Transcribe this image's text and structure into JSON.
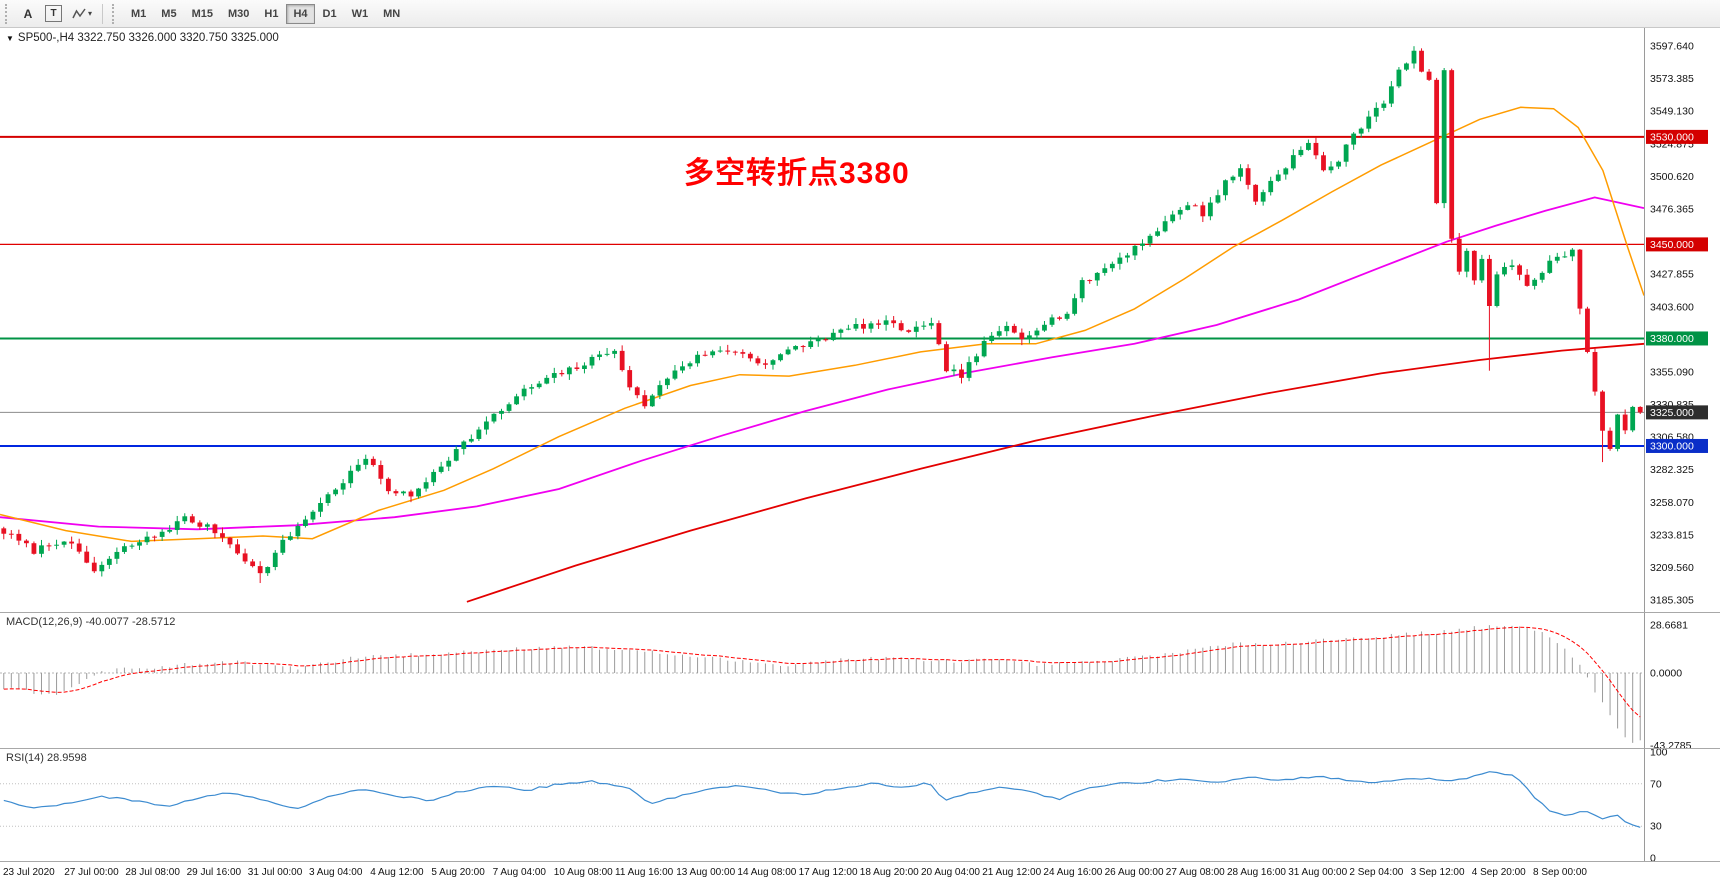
{
  "toolbar": {
    "tools": [
      "A",
      "T"
    ],
    "timeframes": [
      {
        "label": "M1",
        "active": false
      },
      {
        "label": "M5",
        "active": false
      },
      {
        "label": "M15",
        "active": false
      },
      {
        "label": "M30",
        "active": false
      },
      {
        "label": "H1",
        "active": false
      },
      {
        "label": "H4",
        "active": true
      },
      {
        "label": "D1",
        "active": false
      },
      {
        "label": "W1",
        "active": false
      },
      {
        "label": "MN",
        "active": false
      }
    ]
  },
  "chart": {
    "title": "SP500-,H4  3322.750 3326.000 3320.750 3325.000",
    "annotation": {
      "text": "多空转折点3380",
      "color": "#ff0000"
    },
    "axis_labels": [
      "3597.640",
      "3573.385",
      "3549.130",
      "3524.875",
      "3500.620",
      "3476.365",
      "3452.110",
      "3427.855",
      "3403.600",
      "3379.345",
      "3355.090",
      "3330.835",
      "3306.580",
      "3282.325",
      "3258.070",
      "3233.815",
      "3209.560",
      "3185.305"
    ],
    "levels": [
      {
        "price": 3530.0,
        "label": "3530.000",
        "color": "#d40000",
        "badge_color": "#d40000",
        "line_width": 2
      },
      {
        "price": 3450.0,
        "label": "3450.000",
        "color": "#e00000",
        "badge_color": "#d40000",
        "line_width": 1.2
      },
      {
        "price": 3380.0,
        "label": "3380.000",
        "color": "#009345",
        "badge_color": "#009345",
        "line_width": 2
      },
      {
        "price": 3300.0,
        "label": "3300.000",
        "color": "#0026e0",
        "badge_color": "#0a2ec8",
        "line_width": 2
      }
    ],
    "current_price": {
      "value": 3325.0,
      "label": "3325.000",
      "line_color": "#8c8c8c",
      "badge_color": "#2e2e2e"
    },
    "candles": {
      "count": 218,
      "last_close": 3325.0,
      "up_color": "#00a651",
      "down_color": "#e81123",
      "close_anchors": [
        [
          0,
          3236
        ],
        [
          4,
          3222
        ],
        [
          8,
          3231
        ],
        [
          12,
          3207
        ],
        [
          16,
          3224
        ],
        [
          20,
          3233
        ],
        [
          24,
          3246
        ],
        [
          28,
          3237
        ],
        [
          31,
          3222
        ],
        [
          34,
          3204
        ],
        [
          37,
          3228
        ],
        [
          41,
          3252
        ],
        [
          45,
          3274
        ],
        [
          48,
          3291
        ],
        [
          51,
          3268
        ],
        [
          54,
          3262
        ],
        [
          57,
          3281
        ],
        [
          61,
          3302
        ],
        [
          65,
          3322
        ],
        [
          69,
          3341
        ],
        [
          73,
          3352
        ],
        [
          77,
          3361
        ],
        [
          81,
          3373
        ],
        [
          83,
          3342
        ],
        [
          85,
          3331
        ],
        [
          89,
          3357
        ],
        [
          93,
          3369
        ],
        [
          97,
          3371
        ],
        [
          101,
          3361
        ],
        [
          105,
          3373
        ],
        [
          109,
          3381
        ],
        [
          113,
          3389
        ],
        [
          117,
          3391
        ],
        [
          120,
          3386
        ],
        [
          123,
          3389
        ],
        [
          125,
          3358
        ],
        [
          127,
          3352
        ],
        [
          130,
          3376
        ],
        [
          133,
          3389
        ],
        [
          135,
          3381
        ],
        [
          138,
          3392
        ],
        [
          141,
          3399
        ],
        [
          143,
          3421
        ],
        [
          147,
          3436
        ],
        [
          151,
          3452
        ],
        [
          154,
          3466
        ],
        [
          157,
          3481
        ],
        [
          159,
          3473
        ],
        [
          162,
          3496
        ],
        [
          164,
          3506
        ],
        [
          166,
          3483
        ],
        [
          169,
          3503
        ],
        [
          171,
          3515
        ],
        [
          173,
          3525
        ],
        [
          175,
          3505
        ],
        [
          177,
          3513
        ],
        [
          179,
          3531
        ],
        [
          181,
          3546
        ],
        [
          183,
          3557
        ],
        [
          185,
          3578
        ],
        [
          187,
          3592
        ],
        [
          189,
          3570
        ],
        [
          190,
          3482
        ],
        [
          191,
          3580
        ],
        [
          192,
          3452
        ],
        [
          193,
          3431
        ],
        [
          194,
          3447
        ],
        [
          195,
          3421
        ],
        [
          196,
          3441
        ],
        [
          197,
          3405
        ],
        [
          198,
          3430
        ],
        [
          200,
          3436
        ],
        [
          202,
          3417
        ],
        [
          204,
          3431
        ],
        [
          206,
          3441
        ],
        [
          208,
          3446
        ],
        [
          209,
          3401
        ],
        [
          210,
          3371
        ],
        [
          211,
          3341
        ],
        [
          212,
          3311
        ],
        [
          213,
          3296
        ],
        [
          214,
          3321
        ],
        [
          215,
          3311
        ],
        [
          216,
          3331
        ],
        [
          217,
          3325
        ]
      ],
      "overrides": {
        "high": {
          "187": 3597.5
        },
        "low": {
          "197": 3356,
          "212": 3288,
          "34": 3198
        }
      }
    },
    "ma": {
      "orange": {
        "color": "#ff9c00",
        "width": 1.5,
        "points": [
          [
            0,
            3249
          ],
          [
            0.04,
            3237
          ],
          [
            0.08,
            3229
          ],
          [
            0.12,
            3231
          ],
          [
            0.16,
            3233
          ],
          [
            0.19,
            3231
          ],
          [
            0.23,
            3252
          ],
          [
            0.27,
            3267
          ],
          [
            0.3,
            3283
          ],
          [
            0.34,
            3307
          ],
          [
            0.38,
            3328
          ],
          [
            0.42,
            3345
          ],
          [
            0.45,
            3353
          ],
          [
            0.48,
            3352
          ],
          [
            0.52,
            3360
          ],
          [
            0.56,
            3370
          ],
          [
            0.6,
            3376
          ],
          [
            0.63,
            3376
          ],
          [
            0.66,
            3386
          ],
          [
            0.69,
            3402
          ],
          [
            0.72,
            3424
          ],
          [
            0.75,
            3448
          ],
          [
            0.78,
            3468
          ],
          [
            0.81,
            3489
          ],
          [
            0.84,
            3509
          ],
          [
            0.87,
            3526
          ],
          [
            0.9,
            3543
          ],
          [
            0.925,
            3552
          ],
          [
            0.945,
            3551
          ],
          [
            0.96,
            3537
          ],
          [
            0.975,
            3505
          ],
          [
            0.99,
            3448
          ],
          [
            1,
            3412
          ]
        ]
      },
      "magenta": {
        "color": "#f000f0",
        "width": 1.8,
        "points": [
          [
            0,
            3247
          ],
          [
            0.06,
            3240
          ],
          [
            0.12,
            3238
          ],
          [
            0.18,
            3241
          ],
          [
            0.24,
            3247
          ],
          [
            0.29,
            3255
          ],
          [
            0.34,
            3268
          ],
          [
            0.39,
            3289
          ],
          [
            0.44,
            3308
          ],
          [
            0.49,
            3326
          ],
          [
            0.54,
            3342
          ],
          [
            0.59,
            3355
          ],
          [
            0.64,
            3366
          ],
          [
            0.69,
            3376
          ],
          [
            0.74,
            3390
          ],
          [
            0.79,
            3409
          ],
          [
            0.84,
            3433
          ],
          [
            0.88,
            3452
          ],
          [
            0.91,
            3464
          ],
          [
            0.94,
            3475
          ],
          [
            0.97,
            3485
          ],
          [
            1,
            3477
          ]
        ]
      },
      "red": {
        "color": "#e30000",
        "width": 1.8,
        "points": [
          [
            0.284,
            3184
          ],
          [
            0.35,
            3211
          ],
          [
            0.42,
            3237
          ],
          [
            0.49,
            3261
          ],
          [
            0.56,
            3283
          ],
          [
            0.63,
            3304
          ],
          [
            0.7,
            3322
          ],
          [
            0.77,
            3339
          ],
          [
            0.84,
            3354
          ],
          [
            0.9,
            3364
          ],
          [
            0.95,
            3371
          ],
          [
            1,
            3376
          ]
        ]
      }
    }
  },
  "macd": {
    "label": "MACD(12,26,9) -40.0077 -28.5712",
    "bar_color": "#9a9a9a",
    "signal_color": "#ff0000",
    "axis": [
      {
        "v": 28.6681,
        "label": "28.6681"
      },
      {
        "v": 0,
        "label": "0.0000"
      },
      {
        "v": -43.2785,
        "label": "-43.2785"
      }
    ],
    "anchors": [
      [
        0,
        -9
      ],
      [
        0.03,
        -13
      ],
      [
        0.06,
        1
      ],
      [
        0.1,
        4
      ],
      [
        0.14,
        7
      ],
      [
        0.18,
        3
      ],
      [
        0.22,
        10
      ],
      [
        0.26,
        11
      ],
      [
        0.3,
        14
      ],
      [
        0.34,
        16
      ],
      [
        0.38,
        14
      ],
      [
        0.42,
        10
      ],
      [
        0.45,
        7
      ],
      [
        0.48,
        5
      ],
      [
        0.51,
        8
      ],
      [
        0.54,
        9
      ],
      [
        0.57,
        7
      ],
      [
        0.6,
        8
      ],
      [
        0.63,
        5
      ],
      [
        0.66,
        6
      ],
      [
        0.69,
        9
      ],
      [
        0.72,
        13
      ],
      [
        0.75,
        17
      ],
      [
        0.78,
        18
      ],
      [
        0.81,
        20
      ],
      [
        0.84,
        22
      ],
      [
        0.87,
        24
      ],
      [
        0.9,
        27
      ],
      [
        0.92,
        28.7
      ],
      [
        0.94,
        24
      ],
      [
        0.955,
        14
      ],
      [
        0.965,
        2
      ],
      [
        0.975,
        -15
      ],
      [
        0.985,
        -30
      ],
      [
        0.993,
        -43.3
      ],
      [
        1,
        -40
      ]
    ]
  },
  "rsi": {
    "label": "RSI(14) 28.9598",
    "last": 28.9598,
    "color": "#3c8bd0",
    "level_values": [
      70,
      30
    ],
    "axis": [
      {
        "v": 100,
        "label": "100"
      },
      {
        "v": 70,
        "label": "70"
      },
      {
        "v": 30,
        "label": "30"
      },
      {
        "v": 0,
        "label": "0"
      }
    ],
    "anchors": [
      [
        0,
        54
      ],
      [
        0.02,
        47
      ],
      [
        0.04,
        52
      ],
      [
        0.06,
        58
      ],
      [
        0.08,
        54
      ],
      [
        0.1,
        49
      ],
      [
        0.12,
        57
      ],
      [
        0.14,
        62
      ],
      [
        0.16,
        54
      ],
      [
        0.18,
        47
      ],
      [
        0.2,
        59
      ],
      [
        0.22,
        65
      ],
      [
        0.24,
        59
      ],
      [
        0.26,
        54
      ],
      [
        0.28,
        63
      ],
      [
        0.3,
        68
      ],
      [
        0.32,
        64
      ],
      [
        0.34,
        70
      ],
      [
        0.36,
        72
      ],
      [
        0.38,
        67
      ],
      [
        0.395,
        52
      ],
      [
        0.41,
        57
      ],
      [
        0.43,
        65
      ],
      [
        0.45,
        68
      ],
      [
        0.47,
        63
      ],
      [
        0.49,
        59
      ],
      [
        0.51,
        66
      ],
      [
        0.53,
        70
      ],
      [
        0.55,
        67
      ],
      [
        0.565,
        71
      ],
      [
        0.575,
        54
      ],
      [
        0.59,
        61
      ],
      [
        0.61,
        68
      ],
      [
        0.63,
        61
      ],
      [
        0.645,
        55
      ],
      [
        0.66,
        65
      ],
      [
        0.68,
        70
      ],
      [
        0.7,
        72
      ],
      [
        0.72,
        75
      ],
      [
        0.74,
        71
      ],
      [
        0.76,
        76
      ],
      [
        0.78,
        73
      ],
      [
        0.8,
        77
      ],
      [
        0.82,
        74
      ],
      [
        0.84,
        71
      ],
      [
        0.86,
        76
      ],
      [
        0.88,
        73
      ],
      [
        0.9,
        77
      ],
      [
        0.91,
        82
      ],
      [
        0.925,
        76
      ],
      [
        0.935,
        58
      ],
      [
        0.945,
        44
      ],
      [
        0.955,
        40
      ],
      [
        0.965,
        45
      ],
      [
        0.972,
        41
      ],
      [
        0.978,
        37
      ],
      [
        0.984,
        42
      ],
      [
        0.99,
        35
      ],
      [
        0.995,
        32
      ],
      [
        1,
        28.9598
      ]
    ]
  },
  "time_axis": [
    "23 Jul 2020",
    "27 Jul 00:00",
    "28 Jul 08:00",
    "29 Jul 16:00",
    "31 Jul 00:00",
    "3 Aug 04:00",
    "4 Aug 12:00",
    "5 Aug 20:00",
    "7 Aug 04:00",
    "10 Aug 08:00",
    "11 Aug 16:00",
    "13 Aug 00:00",
    "14 Aug 08:00",
    "17 Aug 12:00",
    "18 Aug 20:00",
    "20 Aug 04:00",
    "21 Aug 12:00",
    "24 Aug 16:00",
    "26 Aug 00:00",
    "27 Aug 08:00",
    "28 Aug 16:00",
    "31 Aug 00:00",
    "2 Sep 04:00",
    "3 Sep 12:00",
    "4 Sep 20:00",
    "8 Sep 00:00"
  ]
}
